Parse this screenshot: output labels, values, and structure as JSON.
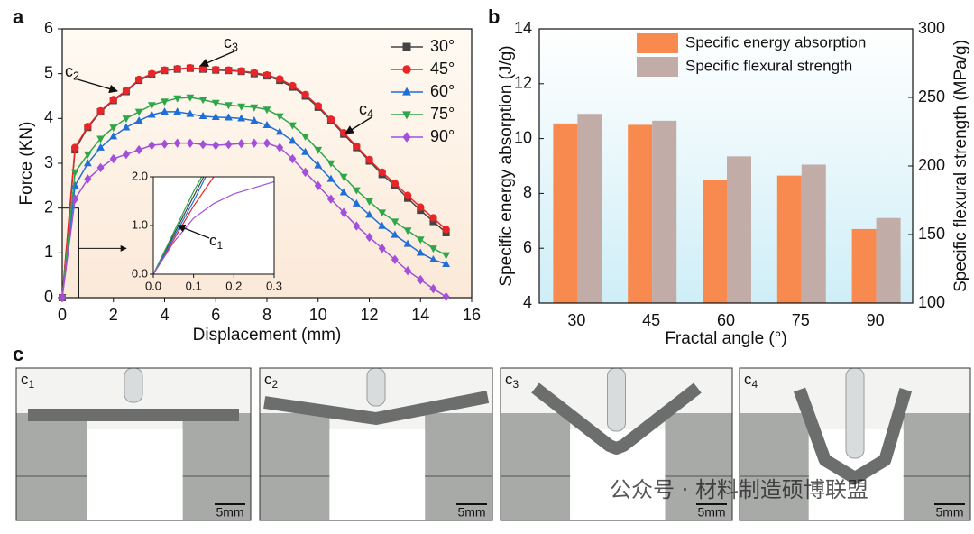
{
  "chart_data": [
    {
      "type": "line",
      "panel_label": "a",
      "x_label": "Displacement (mm)",
      "y_label": "Force (KN)",
      "xlim": [
        0,
        16
      ],
      "ylim": [
        0,
        6
      ],
      "xticks": [
        0,
        2,
        4,
        6,
        8,
        10,
        12,
        14,
        16
      ],
      "yticks": [
        0,
        1,
        2,
        3,
        4,
        5,
        6
      ],
      "legend": "top-right",
      "x": [
        0,
        0.5,
        1,
        1.5,
        2,
        2.5,
        3,
        3.5,
        4,
        4.5,
        5,
        5.5,
        6,
        6.5,
        7,
        7.5,
        8,
        8.5,
        9,
        9.5,
        10,
        10.5,
        11,
        11.5,
        12,
        12.5,
        13,
        13.5,
        14,
        14.5,
        15
      ],
      "series": [
        {
          "name": "30°",
          "color": "#444444",
          "marker": "square",
          "values": [
            0,
            3.3,
            3.8,
            4.15,
            4.4,
            4.6,
            4.85,
            4.98,
            5.07,
            5.1,
            5.12,
            5.1,
            5.08,
            5.07,
            5.05,
            5.0,
            4.95,
            4.85,
            4.7,
            4.5,
            4.25,
            3.95,
            3.65,
            3.35,
            3.05,
            2.75,
            2.5,
            2.22,
            1.95,
            1.7,
            1.45
          ]
        },
        {
          "name": "45°",
          "color": "#e8262a",
          "marker": "circle",
          "values": [
            0,
            3.35,
            3.82,
            4.17,
            4.42,
            4.62,
            4.87,
            5.0,
            5.08,
            5.11,
            5.13,
            5.11,
            5.09,
            5.08,
            5.06,
            5.02,
            4.97,
            4.88,
            4.73,
            4.53,
            4.28,
            3.98,
            3.68,
            3.38,
            3.08,
            2.8,
            2.55,
            2.28,
            2.02,
            1.78,
            1.52
          ]
        },
        {
          "name": "60°",
          "color": "#1f6fd6",
          "marker": "triangle-up",
          "values": [
            0,
            2.5,
            3.0,
            3.35,
            3.6,
            3.8,
            3.95,
            4.08,
            4.15,
            4.15,
            4.1,
            4.05,
            4.03,
            4.02,
            4.0,
            3.95,
            3.85,
            3.7,
            3.5,
            3.25,
            2.95,
            2.65,
            2.35,
            2.1,
            1.85,
            1.6,
            1.4,
            1.2,
            1.0,
            0.85,
            0.75
          ]
        },
        {
          "name": "75°",
          "color": "#2ea64a",
          "marker": "triangle-down",
          "values": [
            0,
            2.8,
            3.2,
            3.55,
            3.8,
            4.0,
            4.15,
            4.3,
            4.38,
            4.45,
            4.47,
            4.42,
            4.35,
            4.3,
            4.27,
            4.25,
            4.2,
            4.05,
            3.85,
            3.6,
            3.3,
            3.0,
            2.7,
            2.4,
            2.15,
            1.9,
            1.7,
            1.5,
            1.3,
            1.1,
            0.95
          ]
        },
        {
          "name": "90°",
          "color": "#a24fd9",
          "marker": "diamond",
          "values": [
            0,
            2.2,
            2.65,
            2.9,
            3.1,
            3.2,
            3.3,
            3.4,
            3.43,
            3.45,
            3.45,
            3.42,
            3.4,
            3.42,
            3.44,
            3.45,
            3.45,
            3.35,
            3.1,
            2.8,
            2.5,
            2.2,
            1.9,
            1.6,
            1.35,
            1.1,
            0.85,
            0.6,
            0.4,
            0.2,
            0.02
          ]
        }
      ],
      "annotations": [
        {
          "label": "c",
          "subscript": "2"
        },
        {
          "label": "c",
          "subscript": "3"
        },
        {
          "label": "c",
          "subscript": "4"
        }
      ],
      "inset": {
        "xlim": [
          0,
          0.3
        ],
        "ylim": [
          0,
          2
        ],
        "xticks": [
          {
            "value": 0,
            "label": "0.0"
          },
          {
            "value": 0.1,
            "label": "0.1"
          },
          {
            "value": 0.2,
            "label": "0.2"
          },
          {
            "value": 0.3,
            "label": "0.3"
          }
        ],
        "yticks": [
          {
            "value": 0,
            "label": "0.0"
          },
          {
            "value": 1,
            "label": "1.0"
          },
          {
            "value": 2,
            "label": "2.0"
          }
        ],
        "series": [
          {
            "x": [
              0,
              0.05,
              0.1,
              0.125
            ],
            "values": [
              0,
              0.8,
              1.6,
              2.0
            ]
          },
          {
            "x": [
              0,
              0.05,
              0.1,
              0.15
            ],
            "values": [
              0,
              0.7,
              1.4,
              2.0
            ]
          },
          {
            "x": [
              0,
              0.05,
              0.1,
              0.13
            ],
            "values": [
              0,
              0.75,
              1.5,
              2.0
            ]
          },
          {
            "x": [
              0,
              0.05,
              0.1,
              0.12
            ],
            "values": [
              0,
              0.85,
              1.7,
              2.0
            ]
          },
          {
            "x": [
              0,
              0.05,
              0.1,
              0.15,
              0.2,
              0.3
            ],
            "values": [
              0,
              0.65,
              1.15,
              1.45,
              1.65,
              1.9
            ]
          }
        ],
        "annotation": {
          "label": "c",
          "subscript": "1"
        }
      }
    },
    {
      "type": "bar",
      "panel_label": "b",
      "x_label": "Fractal angle (°)",
      "y_label": "Specific energy absorption (J/g)",
      "y2_label": "Specific flexural strength (MPa/g)",
      "categories": [
        "30",
        "45",
        "60",
        "75",
        "90"
      ],
      "ylim": [
        4,
        14
      ],
      "yticks": [
        4,
        6,
        8,
        10,
        12,
        14
      ],
      "y2lim": [
        100,
        300
      ],
      "y2ticks": [
        100,
        150,
        200,
        250,
        300
      ],
      "legend": "top-right",
      "series": [
        {
          "name": "Specific energy absorption",
          "color": "#f98a4f",
          "values": [
            10.55,
            10.5,
            8.5,
            8.65,
            6.7
          ]
        },
        {
          "name": "Specific flexural strength",
          "color": "#c2aca7",
          "axis": "y2",
          "values": [
            238,
            233,
            207,
            201,
            162
          ]
        }
      ]
    }
  ],
  "panel_c": {
    "panel_label": "c",
    "photos": [
      {
        "label": "c",
        "subscript": "1",
        "scale": "5mm"
      },
      {
        "label": "c",
        "subscript": "2",
        "scale": "5mm"
      },
      {
        "label": "c",
        "subscript": "3",
        "scale": "5mm"
      },
      {
        "label": "c",
        "subscript": "4",
        "scale": "5mm"
      }
    ]
  },
  "watermark": "公众号 · 材料制造硕博联盟"
}
